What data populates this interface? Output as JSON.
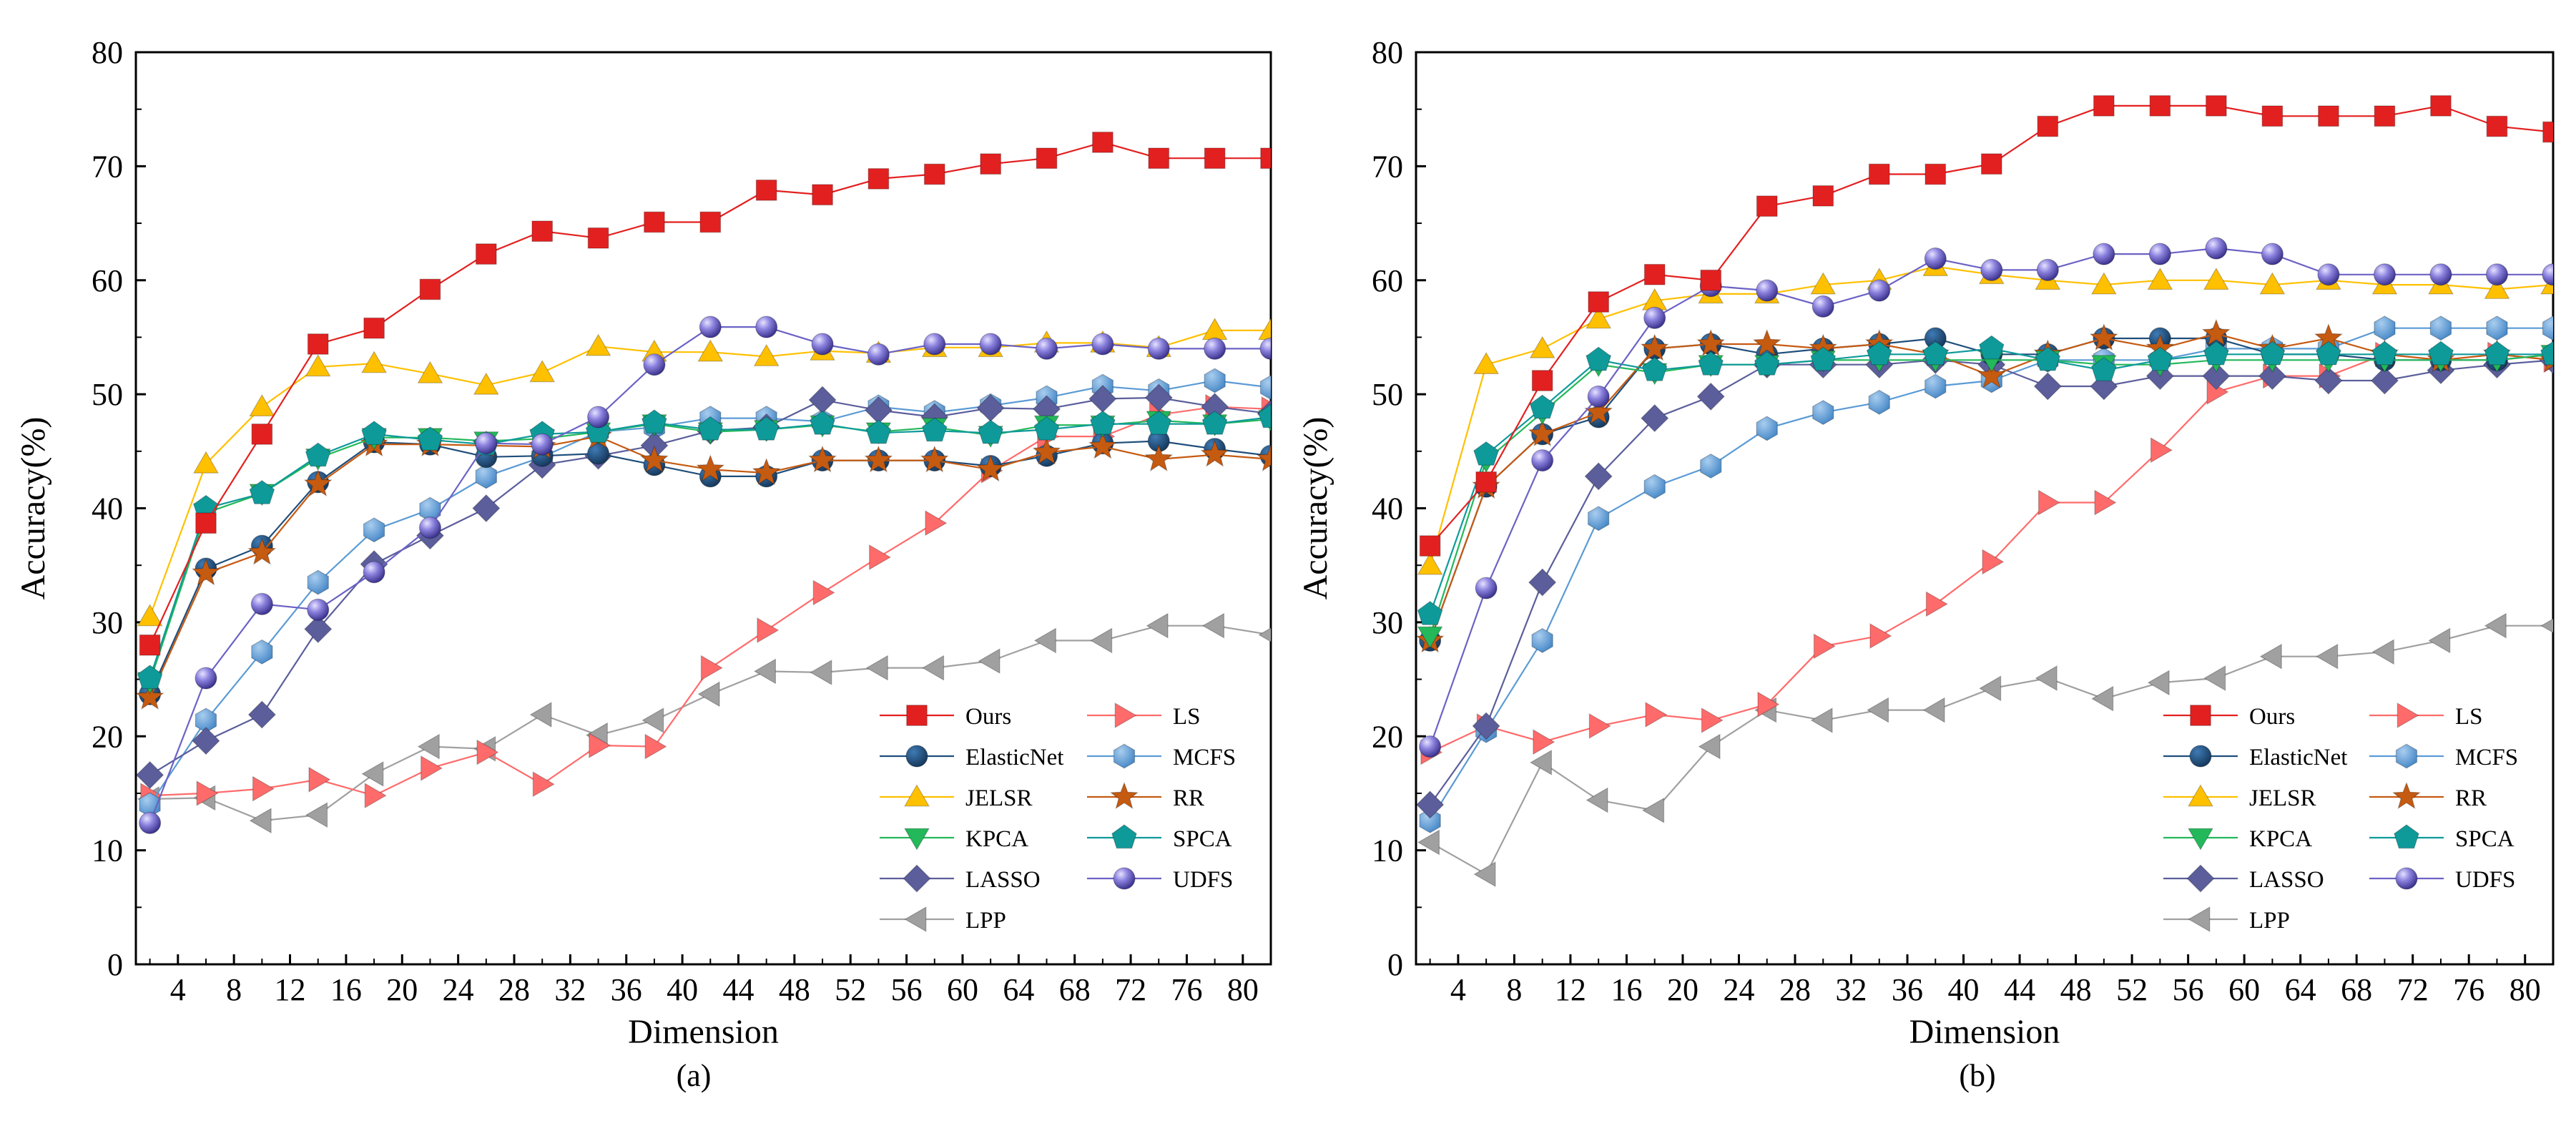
{
  "chart_data": [
    {
      "type": "line",
      "caption": "(a)",
      "xlabel": "Dimension",
      "ylabel": "Accuracy(%)",
      "xlim": [
        1,
        82
      ],
      "ylim": [
        0,
        80
      ],
      "xticks": [
        4,
        8,
        12,
        16,
        20,
        24,
        28,
        32,
        36,
        40,
        44,
        48,
        52,
        56,
        60,
        64,
        68,
        72,
        76,
        80
      ],
      "yticks": [
        0,
        10,
        20,
        30,
        40,
        50,
        60,
        70,
        80
      ],
      "x": [
        2,
        6,
        10,
        14,
        18,
        22,
        26,
        30,
        34,
        38,
        42,
        46,
        50,
        54,
        58,
        62,
        66,
        70,
        74,
        78,
        82
      ],
      "legend_position": "bottom-right",
      "series": [
        {
          "name": "Ours",
          "color": "#e32020",
          "marker": "square",
          "values": [
            28,
            38.7,
            46.5,
            54.4,
            55.8,
            59.2,
            62.3,
            64.3,
            63.7,
            65.1,
            65.1,
            67.9,
            67.5,
            68.9,
            69.3,
            70.2,
            70.7,
            72.1,
            70.7,
            70.7,
            70.7
          ]
        },
        {
          "name": "ElasticNet",
          "color": "#1f4e7a",
          "marker": "circle",
          "values": [
            23.7,
            34.7,
            36.7,
            42.3,
            45.8,
            45.6,
            44.5,
            44.6,
            44.8,
            43.8,
            42.8,
            42.8,
            44.2,
            44.2,
            44.2,
            43.7,
            44.6,
            45.7,
            45.9,
            45.2,
            44.6
          ]
        },
        {
          "name": "JELSR",
          "color": "#ffc000",
          "marker": "triangle-up",
          "values": [
            30.5,
            43.9,
            48.9,
            52.4,
            52.7,
            51.8,
            50.8,
            51.9,
            54.2,
            53.7,
            53.7,
            53.3,
            53.8,
            53.6,
            54.1,
            54.1,
            54.5,
            54.5,
            54.1,
            55.6,
            55.6
          ]
        },
        {
          "name": "KPCA",
          "color": "#23b85a",
          "marker": "triangle-down",
          "values": [
            24.8,
            39.6,
            41.3,
            44.4,
            46.2,
            46.2,
            45.9,
            46.1,
            46.7,
            47.4,
            46.7,
            46.9,
            47.3,
            46.7,
            47.1,
            46.4,
            47.3,
            47.3,
            47.7,
            47.4,
            47.8
          ]
        },
        {
          "name": "LASSO",
          "color": "#5b5e9b",
          "marker": "diamond",
          "values": [
            16.6,
            19.6,
            21.9,
            29.4,
            35.1,
            37.6,
            40.0,
            43.8,
            44.6,
            45.5,
            46.8,
            47.1,
            49.5,
            48.6,
            48.0,
            48.8,
            48.7,
            49.6,
            49.7,
            48.9,
            48.3
          ]
        },
        {
          "name": "LPP",
          "color": "#a0a0a0",
          "marker": "triangle-left",
          "values": [
            14.5,
            14.6,
            12.6,
            13.1,
            16.7,
            19.1,
            18.9,
            21.9,
            20.1,
            21.4,
            23.7,
            25.7,
            25.6,
            26.0,
            26.0,
            26.6,
            28.4,
            28.4,
            29.7,
            29.7,
            28.9
          ]
        },
        {
          "name": "LS",
          "color": "#ff6b6b",
          "marker": "triangle-right",
          "values": [
            14.8,
            15.0,
            15.4,
            16.2,
            14.8,
            17.2,
            18.6,
            15.8,
            19.2,
            19.1,
            26.0,
            29.3,
            32.6,
            35.7,
            38.7,
            43.3,
            46.3,
            46.3,
            48.2,
            48.9,
            48.7
          ]
        },
        {
          "name": "MCFS",
          "color": "#5b9bd5",
          "marker": "hexagon",
          "values": [
            14.0,
            21.4,
            27.4,
            33.5,
            38.1,
            39.9,
            42.8,
            44.5,
            46.7,
            47.1,
            47.9,
            47.9,
            47.6,
            48.9,
            48.4,
            49.0,
            49.7,
            50.7,
            50.3,
            51.2,
            50.6
          ]
        },
        {
          "name": "RR",
          "color": "#c55a11",
          "marker": "star",
          "values": [
            23.4,
            34.3,
            36.1,
            42.1,
            45.6,
            45.6,
            45.5,
            45.4,
            46.3,
            44.2,
            43.4,
            43.1,
            44.2,
            44.2,
            44.2,
            43.4,
            44.9,
            45.4,
            44.3,
            44.7,
            44.3
          ]
        },
        {
          "name": "SPCA",
          "color": "#0f9a9a",
          "marker": "pentagon",
          "values": [
            25.1,
            40.0,
            41.3,
            44.6,
            46.5,
            46.0,
            45.6,
            46.5,
            46.7,
            47.5,
            46.9,
            46.9,
            47.4,
            46.6,
            46.8,
            46.6,
            46.9,
            47.4,
            47.4,
            47.4,
            48.0
          ]
        },
        {
          "name": "UDFS",
          "color": "#6b62c5",
          "marker": "sphere",
          "values": [
            12.4,
            25.1,
            31.6,
            31.1,
            34.4,
            38.3,
            45.7,
            45.6,
            48.0,
            52.6,
            55.9,
            55.9,
            54.4,
            53.5,
            54.4,
            54.4,
            54.0,
            54.4,
            54.0,
            54.0,
            54.0
          ]
        }
      ]
    },
    {
      "type": "line",
      "caption": "(b)",
      "xlabel": "Dimension",
      "ylabel": "Accuracy(%)",
      "xlim": [
        1,
        82
      ],
      "ylim": [
        0,
        80
      ],
      "xticks": [
        4,
        8,
        12,
        16,
        20,
        24,
        28,
        32,
        36,
        40,
        44,
        48,
        52,
        56,
        60,
        64,
        68,
        72,
        76,
        80
      ],
      "yticks": [
        0,
        10,
        20,
        30,
        40,
        50,
        60,
        70,
        80
      ],
      "x": [
        2,
        6,
        10,
        14,
        18,
        22,
        26,
        30,
        34,
        38,
        42,
        46,
        50,
        54,
        58,
        62,
        66,
        70,
        74,
        78,
        82
      ],
      "legend_position": "bottom-right",
      "series": [
        {
          "name": "Ours",
          "color": "#e32020",
          "marker": "square",
          "values": [
            36.7,
            42.3,
            51.2,
            58.1,
            60.5,
            60.0,
            66.5,
            67.4,
            69.3,
            69.3,
            70.2,
            73.5,
            75.3,
            75.3,
            75.3,
            74.4,
            74.4,
            74.4,
            75.3,
            73.5,
            73.0
          ]
        },
        {
          "name": "ElasticNet",
          "color": "#1f4e7a",
          "marker": "circle",
          "values": [
            28.4,
            41.9,
            46.5,
            48.0,
            54.0,
            54.4,
            53.5,
            54.0,
            54.4,
            54.9,
            53.5,
            53.5,
            54.9,
            54.9,
            54.9,
            53.5,
            53.5,
            53.0,
            53.0,
            53.0,
            53.5
          ]
        },
        {
          "name": "JELSR",
          "color": "#ffc000",
          "marker": "triangle-up",
          "values": [
            35.0,
            52.6,
            54.0,
            56.6,
            58.2,
            58.8,
            58.8,
            59.6,
            60.0,
            61.2,
            60.5,
            60.0,
            59.6,
            60.0,
            60.0,
            59.6,
            60.0,
            59.6,
            59.6,
            59.2,
            59.6
          ]
        },
        {
          "name": "KPCA",
          "color": "#23b85a",
          "marker": "triangle-down",
          "values": [
            28.8,
            44.2,
            48.4,
            52.6,
            51.9,
            52.6,
            52.6,
            53.0,
            53.0,
            53.0,
            53.0,
            53.0,
            52.6,
            52.6,
            53.0,
            53.0,
            53.0,
            53.0,
            53.0,
            53.0,
            53.5
          ]
        },
        {
          "name": "LASSO",
          "color": "#5b5e9b",
          "marker": "diamond",
          "values": [
            14.0,
            20.9,
            33.5,
            42.8,
            47.9,
            49.8,
            52.6,
            52.6,
            52.6,
            53.0,
            52.6,
            50.7,
            50.7,
            51.6,
            51.6,
            51.6,
            51.2,
            51.2,
            52.1,
            52.6,
            53.0
          ]
        },
        {
          "name": "LPP",
          "color": "#a0a0a0",
          "marker": "triangle-left",
          "values": [
            10.7,
            7.9,
            17.7,
            14.4,
            13.5,
            19.1,
            22.3,
            21.4,
            22.3,
            22.3,
            24.2,
            25.1,
            23.3,
            24.7,
            25.1,
            27.0,
            27.0,
            27.4,
            28.4,
            29.7,
            29.7
          ]
        },
        {
          "name": "LS",
          "color": "#ff6b6b",
          "marker": "triangle-right",
          "values": [
            18.6,
            20.9,
            19.5,
            20.9,
            21.9,
            21.4,
            22.8,
            27.9,
            28.8,
            31.6,
            35.3,
            40.5,
            40.5,
            45.1,
            50.2,
            51.6,
            51.6,
            53.5,
            53.0,
            53.5,
            53.0
          ]
        },
        {
          "name": "MCFS",
          "color": "#5b9bd5",
          "marker": "hexagon",
          "values": [
            12.6,
            20.5,
            28.4,
            39.1,
            41.9,
            43.7,
            47.0,
            48.4,
            49.3,
            50.7,
            51.2,
            53.0,
            53.0,
            53.0,
            54.0,
            54.0,
            54.0,
            55.8,
            55.8,
            55.8,
            55.8
          ]
        },
        {
          "name": "RR",
          "color": "#c55a11",
          "marker": "star",
          "values": [
            28.4,
            41.9,
            46.5,
            48.4,
            54.0,
            54.4,
            54.4,
            54.0,
            54.4,
            53.5,
            51.6,
            53.5,
            54.9,
            54.0,
            55.3,
            54.0,
            54.9,
            53.5,
            53.0,
            53.5,
            53.0
          ]
        },
        {
          "name": "SPCA",
          "color": "#0f9a9a",
          "marker": "pentagon",
          "values": [
            30.7,
            44.7,
            48.8,
            53.0,
            52.1,
            52.6,
            52.6,
            53.0,
            53.5,
            53.5,
            54.0,
            53.0,
            52.1,
            53.0,
            53.5,
            53.5,
            53.5,
            53.5,
            53.5,
            53.5,
            53.5
          ]
        },
        {
          "name": "UDFS",
          "color": "#6b62c5",
          "marker": "sphere",
          "values": [
            19.1,
            33.0,
            44.2,
            49.8,
            56.7,
            59.5,
            59.1,
            57.7,
            59.1,
            61.9,
            60.9,
            60.9,
            62.3,
            62.3,
            62.8,
            62.3,
            60.5,
            60.5,
            60.5,
            60.5,
            60.5
          ]
        }
      ]
    }
  ]
}
